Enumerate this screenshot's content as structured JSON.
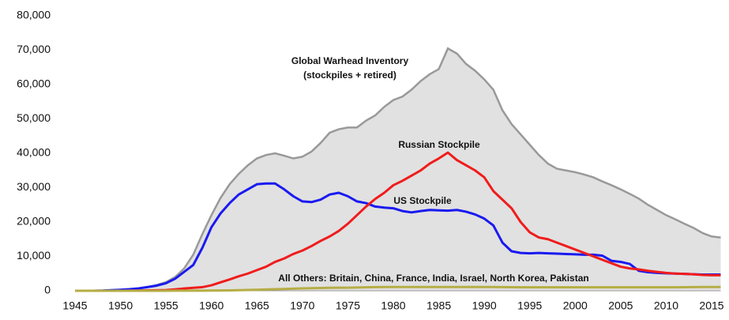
{
  "chart_data": {
    "type": "area-line",
    "annotations": [
      "(stockpiles + retired)"
    ],
    "x": [
      1945,
      1946,
      1947,
      1948,
      1949,
      1950,
      1951,
      1952,
      1953,
      1954,
      1955,
      1956,
      1957,
      1958,
      1959,
      1960,
      1961,
      1962,
      1963,
      1964,
      1965,
      1966,
      1967,
      1968,
      1969,
      1970,
      1971,
      1972,
      1973,
      1974,
      1975,
      1976,
      1977,
      1978,
      1979,
      1980,
      1981,
      1982,
      1983,
      1984,
      1985,
      1986,
      1987,
      1988,
      1989,
      1990,
      1991,
      1992,
      1993,
      1994,
      1995,
      1996,
      1997,
      1998,
      1999,
      2000,
      2001,
      2002,
      2003,
      2004,
      2005,
      2006,
      2007,
      2008,
      2009,
      2010,
      2011,
      2012,
      2013,
      2014,
      2015,
      2016
    ],
    "series": [
      {
        "name": "Global Warhead Inventory",
        "kind": "area",
        "color": "#999999",
        "fill": "#e1e1e1",
        "values": [
          2,
          9,
          13,
          50,
          170,
          300,
          450,
          700,
          1100,
          1700,
          2500,
          4000,
          6500,
          10500,
          16500,
          22000,
          27000,
          31000,
          34000,
          36500,
          38500,
          39500,
          40000,
          39300,
          38500,
          39000,
          40500,
          43000,
          46000,
          47000,
          47500,
          47500,
          49500,
          51000,
          53500,
          55500,
          56500,
          58500,
          61000,
          63000,
          64500,
          70500,
          69000,
          66000,
          64000,
          61500,
          58500,
          52500,
          48500,
          45500,
          42500,
          39500,
          37000,
          35500,
          35000,
          34500,
          33800,
          33000,
          31800,
          30700,
          29500,
          28200,
          26800,
          25000,
          23500,
          22000,
          20800,
          19500,
          18300,
          16800,
          15800,
          15500
        ]
      },
      {
        "name": "US Stockpile",
        "kind": "line",
        "color": "#1a1af0",
        "values": [
          2,
          9,
          13,
          50,
          170,
          300,
          450,
          700,
          1100,
          1500,
          2200,
          3500,
          5500,
          7500,
          12500,
          18500,
          22500,
          25500,
          28000,
          29500,
          31000,
          31200,
          31200,
          29500,
          27500,
          26000,
          25800,
          26500,
          28000,
          28500,
          27500,
          26000,
          25500,
          24500,
          24200,
          24000,
          23200,
          22800,
          23200,
          23500,
          23400,
          23300,
          23500,
          23000,
          22200,
          21000,
          19000,
          14000,
          11500,
          11000,
          10900,
          11000,
          10900,
          10800,
          10700,
          10600,
          10500,
          10500,
          10200,
          8700,
          8400,
          7800,
          5800,
          5400,
          5200,
          5100,
          5000,
          4900,
          4800,
          4700,
          4700,
          4700
        ]
      },
      {
        "name": "Russian Stockpile",
        "kind": "line",
        "color": "#f01c1c",
        "values": [
          0,
          0,
          0,
          0,
          1,
          5,
          25,
          50,
          120,
          150,
          200,
          400,
          650,
          850,
          1050,
          1600,
          2450,
          3300,
          4200,
          5000,
          6000,
          7000,
          8400,
          9400,
          10700,
          11700,
          13000,
          14500,
          15800,
          17400,
          19500,
          22000,
          24500,
          26700,
          28500,
          30700,
          32000,
          33500,
          35000,
          37000,
          38500,
          40200,
          38000,
          36500,
          35000,
          33000,
          29000,
          26500,
          24000,
          20000,
          17000,
          15500,
          15000,
          14000,
          13000,
          12000,
          11000,
          10000,
          9000,
          8000,
          7000,
          6500,
          6200,
          5800,
          5500,
          5200,
          5000,
          4900,
          4800,
          4600,
          4500,
          4500
        ]
      },
      {
        "name": "All Others: Britain, China, France, India, Israel, North Korea, Pakistan",
        "kind": "line",
        "color": "#b5ad45",
        "values": [
          0,
          0,
          0,
          0,
          0,
          0,
          0,
          0,
          1,
          5,
          10,
          15,
          20,
          30,
          40,
          60,
          80,
          120,
          160,
          220,
          300,
          380,
          450,
          520,
          600,
          700,
          760,
          800,
          850,
          880,
          900,
          950,
          1000,
          1050,
          1080,
          1100,
          1100,
          1100,
          1100,
          1100,
          1100,
          1100,
          1100,
          1100,
          1100,
          1100,
          1080,
          1050,
          1030,
          1010,
          1000,
          1000,
          1000,
          1000,
          1000,
          1000,
          1000,
          1000,
          1000,
          1000,
          1000,
          1000,
          1000,
          1000,
          1000,
          1000,
          1020,
          1040,
          1060,
          1080,
          1100,
          1100
        ]
      }
    ],
    "xlim": [
      1945,
      2016
    ],
    "xticks": [
      1945,
      1950,
      1955,
      1960,
      1965,
      1970,
      1975,
      1980,
      1985,
      1990,
      1995,
      2000,
      2005,
      2010,
      2015
    ],
    "ylim": [
      0,
      80000
    ],
    "yticks": [
      0,
      {
        "value": 10000,
        "label": "10,000"
      },
      {
        "value": 20000,
        "label": "20,000"
      },
      {
        "value": 30000,
        "label": "30,000"
      },
      {
        "value": 40000,
        "label": "40,000"
      },
      {
        "value": 50000,
        "label": "50,000"
      },
      {
        "value": 60000,
        "label": "60,000"
      },
      {
        "value": 70000,
        "label": "70,000"
      },
      {
        "value": 80000,
        "label": "80,000"
      }
    ],
    "grid": false
  }
}
